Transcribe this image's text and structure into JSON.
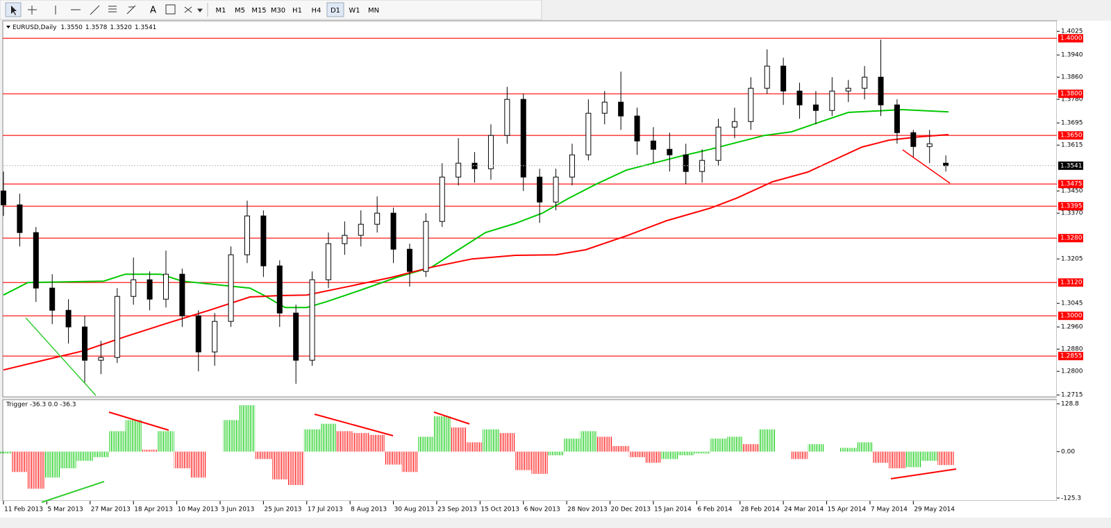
{
  "toolbar": {
    "timeframes": [
      "M1",
      "M5",
      "M15",
      "M30",
      "H1",
      "H4",
      "D1",
      "W1",
      "MN"
    ],
    "active": "D1"
  },
  "chart_data": [
    {
      "type": "candlestick",
      "title": "EURUSD,Daily",
      "header_values": [
        "1.3550",
        "1.3578",
        "1.3520",
        "1.3541"
      ],
      "x": [
        0,
        6,
        12,
        18,
        24,
        30,
        36,
        42,
        48,
        54,
        60,
        66,
        72,
        78,
        84,
        90,
        96,
        102,
        108,
        114,
        120,
        126,
        132,
        138,
        144,
        150,
        156,
        162,
        168,
        174,
        180,
        186,
        192,
        198,
        204,
        210,
        216,
        222,
        228,
        234,
        240,
        246,
        252,
        258,
        264,
        270,
        276,
        282,
        288,
        294,
        300,
        306,
        312,
        318,
        324,
        330,
        336,
        342,
        348
      ],
      "open": [
        1.345,
        1.34,
        1.33,
        1.31,
        1.302,
        1.296,
        1.284,
        1.285,
        1.307,
        1.313,
        1.306,
        1.315,
        1.3,
        1.287,
        1.298,
        1.322,
        1.336,
        1.318,
        1.301,
        1.284,
        1.313,
        1.326,
        1.329,
        1.333,
        1.337,
        1.324,
        1.316,
        1.334,
        1.35,
        1.355,
        1.353,
        1.365,
        1.378,
        1.35,
        1.341,
        1.35,
        1.358,
        1.373,
        1.377,
        1.372,
        1.363,
        1.36,
        1.358,
        1.352,
        1.356,
        1.368,
        1.37,
        1.382,
        1.39,
        1.381,
        1.376,
        1.374,
        1.381,
        1.382,
        1.386,
        1.376,
        1.366,
        1.361,
        1.355
      ],
      "high": [
        1.352,
        1.344,
        1.332,
        1.315,
        1.306,
        1.3,
        1.291,
        1.31,
        1.321,
        1.316,
        1.3235,
        1.317,
        1.302,
        1.301,
        1.325,
        1.3415,
        1.338,
        1.32,
        1.304,
        1.316,
        1.33,
        1.334,
        1.338,
        1.343,
        1.339,
        1.326,
        1.337,
        1.355,
        1.364,
        1.359,
        1.369,
        1.3825,
        1.38,
        1.353,
        1.353,
        1.362,
        1.378,
        1.381,
        1.388,
        1.375,
        1.368,
        1.366,
        1.362,
        1.36,
        1.371,
        1.375,
        1.386,
        1.396,
        1.393,
        1.384,
        1.381,
        1.386,
        1.385,
        1.39,
        1.3995,
        1.378,
        1.367,
        1.367,
        1.3578
      ],
      "low": [
        1.336,
        1.325,
        1.305,
        1.297,
        1.29,
        1.2755,
        1.279,
        1.283,
        1.304,
        1.302,
        1.303,
        1.296,
        1.28,
        1.282,
        1.296,
        1.319,
        1.314,
        1.296,
        1.2755,
        1.282,
        1.31,
        1.322,
        1.325,
        1.33,
        1.319,
        1.3105,
        1.314,
        1.332,
        1.347,
        1.348,
        1.349,
        1.362,
        1.345,
        1.3335,
        1.338,
        1.347,
        1.356,
        1.369,
        1.367,
        1.358,
        1.355,
        1.352,
        1.3475,
        1.348,
        1.354,
        1.364,
        1.367,
        1.38,
        1.376,
        1.371,
        1.369,
        1.372,
        1.377,
        1.378,
        1.372,
        1.362,
        1.357,
        1.355,
        1.352
      ],
      "close": [
        1.34,
        1.33,
        1.31,
        1.302,
        1.296,
        1.284,
        1.285,
        1.307,
        1.313,
        1.306,
        1.315,
        1.3,
        1.287,
        1.298,
        1.322,
        1.336,
        1.318,
        1.301,
        1.284,
        1.313,
        1.326,
        1.329,
        1.333,
        1.337,
        1.324,
        1.316,
        1.334,
        1.35,
        1.355,
        1.353,
        1.365,
        1.378,
        1.35,
        1.341,
        1.35,
        1.358,
        1.373,
        1.377,
        1.372,
        1.363,
        1.36,
        1.358,
        1.352,
        1.356,
        1.368,
        1.37,
        1.382,
        1.39,
        1.381,
        1.376,
        1.374,
        1.381,
        1.382,
        1.386,
        1.376,
        1.366,
        1.361,
        1.362,
        1.3541
      ],
      "up_color": "#ffffff",
      "down_color": "#000000",
      "series": [
        {
          "color": "#00c800",
          "x": [
            0,
            9,
            37,
            45,
            58,
            66,
            81,
            91,
            96,
            104,
            112,
            119,
            132,
            145,
            158,
            168,
            178,
            189,
            199,
            209,
            219,
            230,
            240,
            250,
            261,
            271,
            281,
            291,
            302,
            312,
            322,
            332,
            349
          ],
          "values": [
            1.3075,
            1.312,
            1.3125,
            1.315,
            1.315,
            1.3125,
            1.311,
            1.31,
            1.3075,
            1.303,
            1.303,
            1.305,
            1.3093,
            1.3138,
            1.3175,
            1.3238,
            1.33,
            1.3333,
            1.337,
            1.3425,
            1.3475,
            1.3525,
            1.355,
            1.3575,
            1.36,
            1.3625,
            1.365,
            1.3663,
            1.37,
            1.3733,
            1.3738,
            1.3743,
            1.3735
          ]
        },
        {
          "color": "#ff0000",
          "x": [
            0,
            14,
            30,
            45,
            61,
            76,
            91,
            102,
            112,
            127,
            143,
            158,
            173,
            189,
            204,
            215,
            230,
            245,
            261,
            271,
            284,
            297,
            307,
            317,
            327,
            338,
            349
          ],
          "values": [
            1.2805,
            1.2838,
            1.2875,
            1.2925,
            1.2975,
            1.302,
            1.3068,
            1.3073,
            1.3075,
            1.3105,
            1.3138,
            1.3175,
            1.3205,
            1.3218,
            1.322,
            1.3238,
            1.3288,
            1.3343,
            1.3388,
            1.3425,
            1.3483,
            1.3518,
            1.3563,
            1.3608,
            1.3633,
            1.3645,
            1.3653
          ]
        }
      ],
      "xlim": [
        0,
        389
      ],
      "xticks": [
        {
          "value": 0,
          "label": "11 Feb 2013"
        },
        {
          "value": 16,
          "label": "5 Mar 2013"
        },
        {
          "value": 32,
          "label": "27 Mar 2013"
        },
        {
          "value": 48,
          "label": "18 Apr 2013"
        },
        {
          "value": 64,
          "label": "10 May 2013"
        },
        {
          "value": 80,
          "label": "3 Jun 2013"
        },
        {
          "value": 96,
          "label": "25 Jun 2013"
        },
        {
          "value": 112,
          "label": "17 Jul 2013"
        },
        {
          "value": 128,
          "label": "8 Aug 2013"
        },
        {
          "value": 144,
          "label": "30 Aug 2013"
        },
        {
          "value": 160,
          "label": "23 Sep 2013"
        },
        {
          "value": 176,
          "label": "15 Oct 2013"
        },
        {
          "value": 192,
          "label": "6 Nov 2013"
        },
        {
          "value": 208,
          "label": "28 Nov 2013"
        },
        {
          "value": 224,
          "label": "20 Dec 2013"
        },
        {
          "value": 240,
          "label": "15 Jan 2014"
        },
        {
          "value": 256,
          "label": "6 Feb 2014"
        },
        {
          "value": 272,
          "label": "28 Feb 2014"
        },
        {
          "value": 288,
          "label": "24 Mar 2014"
        },
        {
          "value": 304,
          "label": "15 Apr 2014"
        },
        {
          "value": 320,
          "label": "7 May 2014"
        },
        {
          "value": 336,
          "label": "29 May 2014"
        }
      ],
      "ylim": [
        1.2708,
        1.4063
      ],
      "yticks": [
        {
          "value": 1.4025,
          "label": "1.4025"
        },
        {
          "value": 1.394,
          "label": "1.3940"
        },
        {
          "value": 1.386,
          "label": "1.3860"
        },
        {
          "value": 1.378,
          "label": "1.3780"
        },
        {
          "value": 1.3695,
          "label": "1.3695"
        },
        {
          "value": 1.3615,
          "label": "1.3615"
        },
        {
          "value": 1.345,
          "label": "1.3450"
        },
        {
          "value": 1.337,
          "label": "1.3370"
        },
        {
          "value": 1.3205,
          "label": "1.3205"
        },
        {
          "value": 1.3045,
          "label": "1.3045"
        },
        {
          "value": 1.296,
          "label": "1.2960"
        },
        {
          "value": 1.288,
          "label": "1.2880"
        },
        {
          "value": 1.28,
          "label": "1.2800"
        },
        {
          "value": 1.2715,
          "label": "1.2715"
        }
      ],
      "levels": [
        {
          "value": 1.4,
          "label": "1.4000"
        },
        {
          "value": 1.38,
          "label": "1.3800"
        },
        {
          "value": 1.365,
          "label": "1.3650"
        },
        {
          "value": 1.3475,
          "label": "1.3475"
        },
        {
          "value": 1.3395,
          "label": "1.3395"
        },
        {
          "value": 1.328,
          "label": "1.3280"
        },
        {
          "value": 1.312,
          "label": "1.3120"
        },
        {
          "value": 1.3,
          "label": "1.3000"
        },
        {
          "value": 1.2855,
          "label": "1.2855"
        }
      ],
      "level_color": "#ff0000",
      "last_price": {
        "value": 1.3541,
        "label": "1.3541"
      }
    },
    {
      "type": "bar",
      "title": "Trigger -36.3 0.0 -36.3",
      "x": [
        0,
        6,
        12,
        18,
        24,
        30,
        36,
        42,
        48,
        54,
        60,
        66,
        72,
        78,
        84,
        90,
        96,
        102,
        108,
        114,
        120,
        126,
        132,
        138,
        144,
        150,
        156,
        162,
        168,
        174,
        180,
        186,
        192,
        198,
        204,
        210,
        216,
        222,
        228,
        234,
        240,
        246,
        252,
        258,
        264,
        270,
        276,
        282,
        288,
        294,
        300,
        306,
        312,
        318,
        324,
        330,
        336,
        342,
        348
      ],
      "values": [
        -5,
        -55,
        -100,
        -70,
        -45,
        -25,
        -15,
        55,
        85,
        5,
        55,
        -45,
        -70,
        0,
        85,
        125,
        -20,
        -75,
        -90,
        60,
        75,
        55,
        50,
        45,
        -35,
        -55,
        40,
        95,
        65,
        25,
        60,
        50,
        -50,
        -60,
        -10,
        35,
        55,
        40,
        15,
        -15,
        -30,
        -20,
        -10,
        -5,
        35,
        40,
        20,
        60,
        0,
        -20,
        20,
        0,
        10,
        25,
        -30,
        -45,
        -42,
        -25,
        -36.3
      ],
      "up_color": "#00c800",
      "down_color": "#ff0000",
      "xlim": [
        0,
        389
      ],
      "ylim": [
        -133,
        140
      ],
      "yticks": [
        128.8,
        {
          "value": 0,
          "label": "0.00"
        },
        -125.3
      ]
    }
  ]
}
